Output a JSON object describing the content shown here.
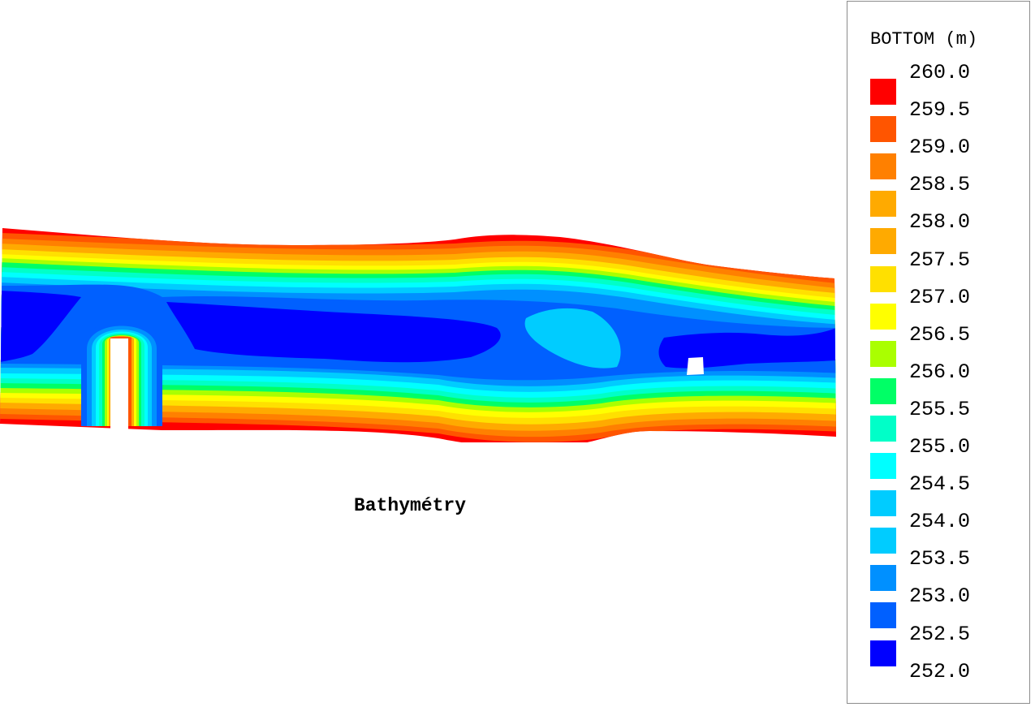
{
  "caption": "Bathymétry",
  "legend": {
    "title": "BOTTOM (m)",
    "ticks": [
      "260.0",
      "259.5",
      "259.0",
      "258.5",
      "258.0",
      "257.5",
      "257.0",
      "256.5",
      "256.0",
      "255.5",
      "255.0",
      "254.5",
      "254.0",
      "253.5",
      "253.0",
      "252.5",
      "252.0"
    ],
    "colors": [
      "#ff0000",
      "#ff5500",
      "#ff8000",
      "#ffaa00",
      "#ffaa00",
      "#ffe000",
      "#ffff00",
      "#aaff00",
      "#00ff66",
      "#00ffc8",
      "#00ffff",
      "#00ccff",
      "#00ccff",
      "#0090ff",
      "#0060ff",
      "#0000ff"
    ]
  },
  "chart_data": {
    "type": "heatmap",
    "variable": "BOTTOM (m)",
    "range": [
      252.0,
      260.0
    ],
    "contour_interval": 0.5
  }
}
